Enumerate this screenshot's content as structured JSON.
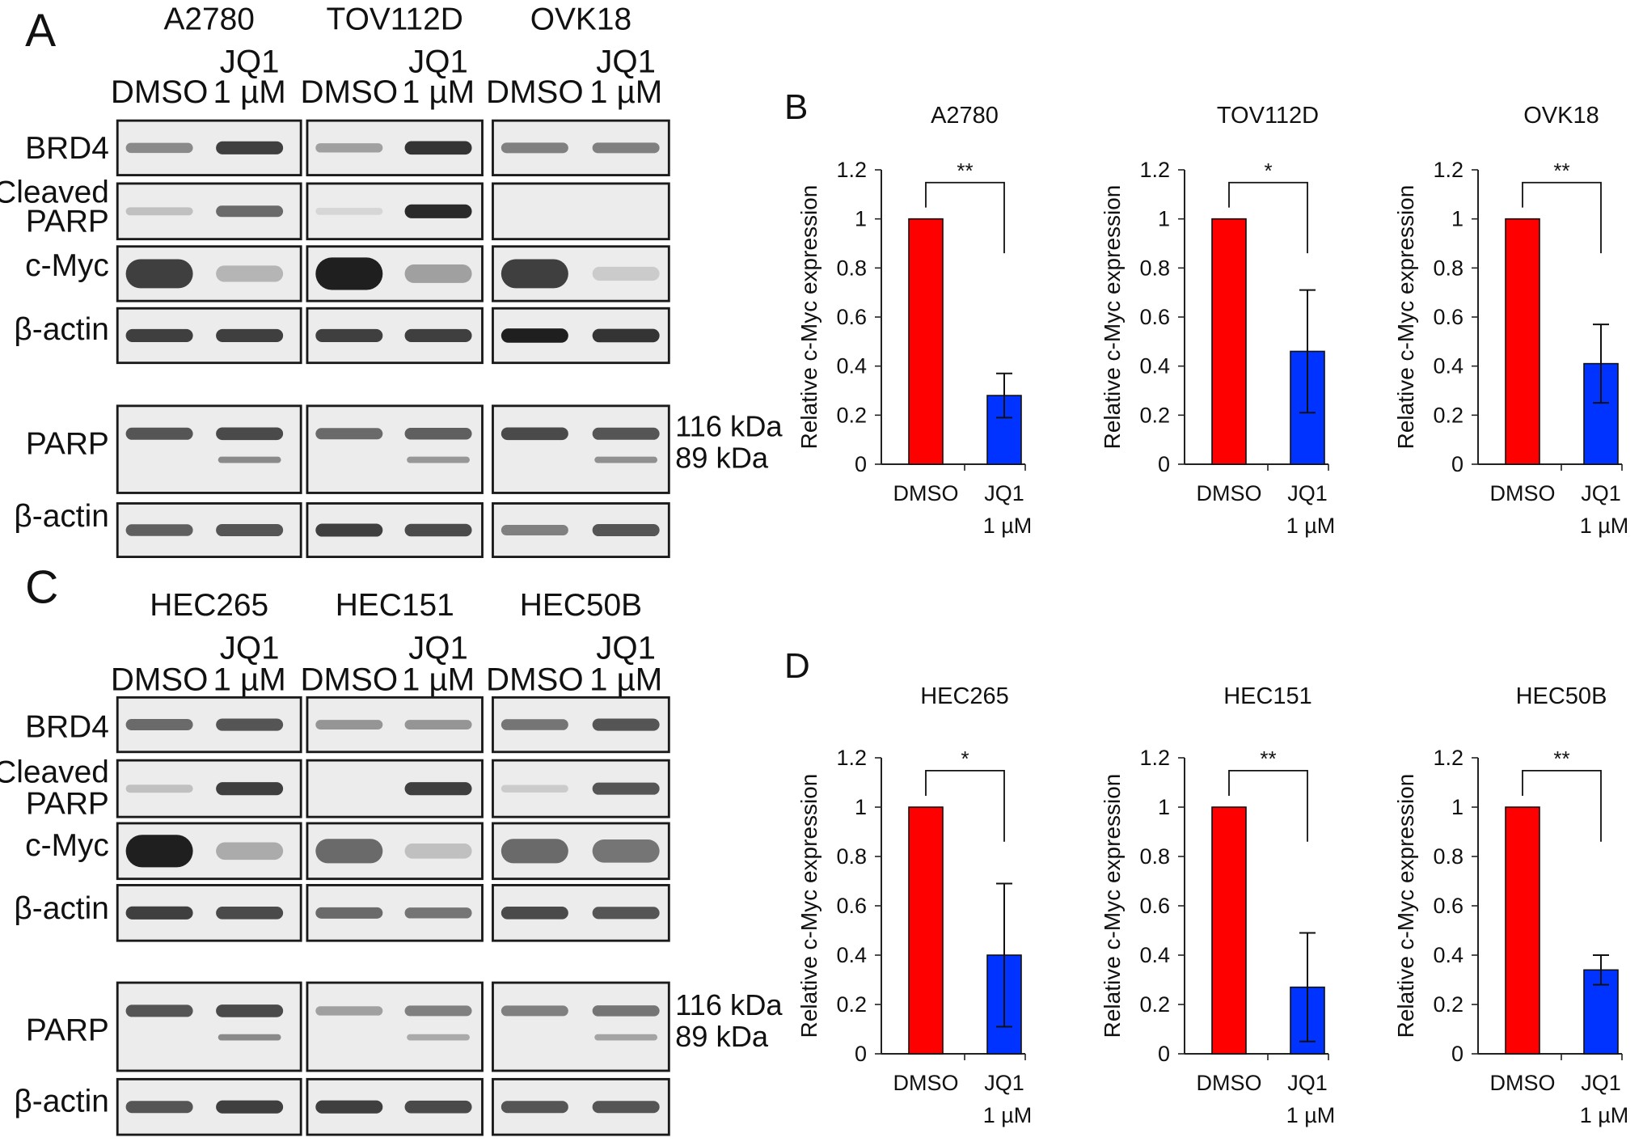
{
  "western_blots": [
    {
      "panel_label": "A",
      "cell_lines": [
        "A2780",
        "TOV112D",
        "OVK18"
      ],
      "lanes": {
        "dmso": "DMSO",
        "jq1_line1": "JQ1",
        "jq1_line2": "1 µM"
      },
      "rows": [
        {
          "label": [
            "BRD4"
          ]
        },
        {
          "label": [
            "Cleaved",
            "PARP"
          ]
        },
        {
          "label": [
            "c-Myc"
          ]
        },
        {
          "label": [
            "β-actin"
          ]
        },
        {
          "label": [
            "PARP"
          ]
        },
        {
          "label": [
            "β-actin"
          ]
        }
      ],
      "size_markers": [
        "116 kDa",
        "89 kDa"
      ]
    },
    {
      "panel_label": "C",
      "cell_lines": [
        "HEC265",
        "HEC151",
        "HEC50B"
      ],
      "lanes": {
        "dmso": "DMSO",
        "jq1_line1": "JQ1",
        "jq1_line2": "1 µM"
      },
      "rows": [
        {
          "label": [
            "BRD4"
          ]
        },
        {
          "label": [
            "Cleaved",
            "PARP"
          ]
        },
        {
          "label": [
            "c-Myc"
          ]
        },
        {
          "label": [
            "β-actin"
          ]
        },
        {
          "label": [
            "PARP"
          ]
        },
        {
          "label": [
            "β-actin"
          ]
        }
      ],
      "size_markers": [
        "116 kDa",
        "89 kDa"
      ]
    }
  ],
  "colors": {
    "dmso_bar": "#ff0000",
    "jq1_bar": "#0033ff"
  },
  "chart_data": [
    {
      "panel_label": "B",
      "type": "bar",
      "title": "A2780",
      "categories": [
        "DMSO",
        "JQ1"
      ],
      "category_sublabels": [
        "",
        "1 µM"
      ],
      "values": [
        1,
        0.28
      ],
      "errors": [
        0,
        0.09
      ],
      "ylabel": "Relative c-Myc expression",
      "ylim": [
        0,
        1.2
      ],
      "yticks": [
        "0",
        "0.2",
        "0.4",
        "0.6",
        "0.8",
        "1",
        "1.2"
      ],
      "significance": "**",
      "grid": false
    },
    {
      "panel_label": "",
      "type": "bar",
      "title": "TOV112D",
      "categories": [
        "DMSO",
        "JQ1"
      ],
      "category_sublabels": [
        "",
        "1 µM"
      ],
      "values": [
        1,
        0.46
      ],
      "errors": [
        0,
        0.25
      ],
      "ylabel": "Relative c-Myc expression",
      "ylim": [
        0,
        1.2
      ],
      "yticks": [
        "0",
        "0.2",
        "0.4",
        "0.6",
        "0.8",
        "1",
        "1.2"
      ],
      "significance": "*",
      "grid": false
    },
    {
      "panel_label": "",
      "type": "bar",
      "title": "OVK18",
      "categories": [
        "DMSO",
        "JQ1"
      ],
      "category_sublabels": [
        "",
        "1 µM"
      ],
      "values": [
        1,
        0.41
      ],
      "errors": [
        0,
        0.16
      ],
      "ylabel": "Relative c-Myc expression",
      "ylim": [
        0,
        1.2
      ],
      "yticks": [
        "0",
        "0.2",
        "0.4",
        "0.6",
        "0.8",
        "1",
        "1.2"
      ],
      "significance": "**",
      "grid": false
    },
    {
      "panel_label": "D",
      "type": "bar",
      "title": "HEC265",
      "categories": [
        "DMSO",
        "JQ1"
      ],
      "category_sublabels": [
        "",
        "1 µM"
      ],
      "values": [
        1,
        0.4
      ],
      "errors": [
        0,
        0.29
      ],
      "ylabel": "Relative c-Myc expression",
      "ylim": [
        0,
        1.2
      ],
      "yticks": [
        "0",
        "0.2",
        "0.4",
        "0.6",
        "0.8",
        "1",
        "1.2"
      ],
      "significance": "*",
      "grid": false
    },
    {
      "panel_label": "",
      "type": "bar",
      "title": "HEC151",
      "categories": [
        "DMSO",
        "JQ1"
      ],
      "category_sublabels": [
        "",
        "1 µM"
      ],
      "values": [
        1,
        0.27
      ],
      "errors": [
        0,
        0.22
      ],
      "ylabel": "Relative c-Myc expression",
      "ylim": [
        0,
        1.2
      ],
      "yticks": [
        "0",
        "0.2",
        "0.4",
        "0.6",
        "0.8",
        "1",
        "1.2"
      ],
      "significance": "**",
      "grid": false
    },
    {
      "panel_label": "",
      "type": "bar",
      "title": "HEC50B",
      "categories": [
        "DMSO",
        "JQ1"
      ],
      "category_sublabels": [
        "",
        "1 µM"
      ],
      "values": [
        1,
        0.34
      ],
      "errors": [
        0,
        0.06
      ],
      "ylabel": "Relative c-Myc expression",
      "ylim": [
        0,
        1.2
      ],
      "yticks": [
        "0",
        "0.2",
        "0.4",
        "0.6",
        "0.8",
        "1",
        "1.2"
      ],
      "significance": "**",
      "grid": false
    }
  ]
}
